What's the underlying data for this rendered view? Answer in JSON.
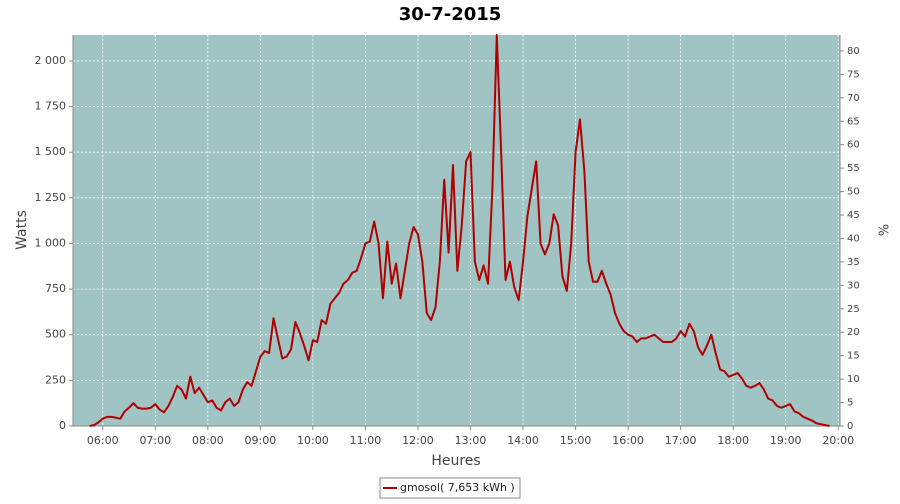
{
  "chart_data": {
    "type": "line",
    "title": "30-7-2015",
    "x_label": "Heures",
    "y_label": "Watts",
    "y2_label": "%",
    "x": [
      345,
      350,
      355,
      360,
      365,
      370,
      375,
      380,
      385,
      390,
      395,
      400,
      405,
      410,
      415,
      420,
      425,
      430,
      435,
      440,
      445,
      450,
      455,
      460,
      465,
      470,
      475,
      480,
      485,
      490,
      495,
      500,
      505,
      510,
      515,
      520,
      525,
      530,
      535,
      540,
      545,
      550,
      555,
      560,
      565,
      570,
      575,
      580,
      585,
      590,
      595,
      600,
      605,
      610,
      615,
      620,
      625,
      630,
      635,
      640,
      645,
      650,
      655,
      660,
      665,
      670,
      675,
      680,
      685,
      690,
      695,
      700,
      705,
      710,
      715,
      720,
      725,
      730,
      735,
      740,
      745,
      750,
      755,
      760,
      765,
      770,
      775,
      780,
      785,
      790,
      795,
      800,
      805,
      810,
      815,
      820,
      825,
      830,
      835,
      840,
      845,
      850,
      855,
      860,
      865,
      870,
      875,
      880,
      885,
      890,
      895,
      900,
      905,
      910,
      915,
      920,
      925,
      930,
      935,
      940,
      945,
      950,
      955,
      960,
      965,
      970,
      975,
      980,
      985,
      990,
      995,
      1000,
      1005,
      1010,
      1015,
      1020,
      1025,
      1030,
      1035,
      1040,
      1045,
      1050,
      1055,
      1060,
      1065,
      1070,
      1075,
      1080,
      1085,
      1090,
      1095,
      1100,
      1105,
      1110,
      1115,
      1120,
      1125,
      1130,
      1135,
      1140,
      1145,
      1150,
      1155,
      1160,
      1165,
      1170,
      1175,
      1180,
      1185,
      1190
    ],
    "series": [
      {
        "name": "gmosol( 7,653 kWh )",
        "color": "#b00000",
        "values": [
          0,
          5,
          20,
          40,
          50,
          50,
          45,
          40,
          80,
          100,
          125,
          100,
          95,
          95,
          100,
          120,
          90,
          75,
          110,
          160,
          220,
          200,
          150,
          270,
          180,
          210,
          170,
          130,
          140,
          100,
          85,
          130,
          150,
          110,
          130,
          200,
          240,
          220,
          300,
          380,
          410,
          400,
          590,
          480,
          370,
          380,
          420,
          570,
          510,
          440,
          360,
          470,
          460,
          580,
          560,
          670,
          700,
          730,
          780,
          800,
          840,
          850,
          920,
          1000,
          1010,
          1120,
          1000,
          700,
          1010,
          780,
          890,
          700,
          850,
          1000,
          1090,
          1050,
          900,
          620,
          580,
          650,
          900,
          1350,
          950,
          1430,
          850,
          1100,
          1450,
          1500,
          900,
          800,
          880,
          780,
          1300,
          2142,
          1500,
          800,
          900,
          760,
          690,
          900,
          1150,
          1300,
          1450,
          1000,
          940,
          1000,
          1160,
          1100,
          820,
          740,
          1000,
          1500,
          1680,
          1400,
          900,
          790,
          790,
          850,
          780,
          720,
          620,
          560,
          520,
          500,
          490,
          460,
          480,
          480,
          490,
          500,
          480,
          460,
          460,
          460,
          480,
          520,
          490,
          560,
          520,
          430,
          390,
          440,
          500,
          400,
          310,
          300,
          270,
          280,
          290,
          260,
          220,
          210,
          220,
          235,
          200,
          150,
          140,
          110,
          100,
          110,
          120,
          80,
          70,
          50,
          40,
          30,
          15,
          10,
          5,
          0
        ]
      }
    ],
    "xlim": [
      326,
      1202
    ],
    "xticks": [
      {
        "value": 360,
        "label": "06:00"
      },
      {
        "value": 420,
        "label": "07:00"
      },
      {
        "value": 480,
        "label": "08:00"
      },
      {
        "value": 540,
        "label": "09:00"
      },
      {
        "value": 600,
        "label": "10:00"
      },
      {
        "value": 660,
        "label": "11:00"
      },
      {
        "value": 720,
        "label": "12:00"
      },
      {
        "value": 780,
        "label": "13:00"
      },
      {
        "value": 840,
        "label": "14:00"
      },
      {
        "value": 900,
        "label": "15:00"
      },
      {
        "value": 960,
        "label": "16:00"
      },
      {
        "value": 1020,
        "label": "17:00"
      },
      {
        "value": 1080,
        "label": "18:00"
      },
      {
        "value": 1140,
        "label": "19:00"
      },
      {
        "value": 1200,
        "label": "20:00"
      }
    ],
    "ylim": [
      0,
      2142
    ],
    "yticks": [
      0,
      250,
      500,
      750,
      {
        "value": 1000,
        "label": "1 000"
      },
      {
        "value": 1250,
        "label": "1 250"
      },
      {
        "value": 1500,
        "label": "1 500"
      },
      {
        "value": 1750,
        "label": "1 750"
      },
      {
        "value": 2000,
        "label": "2 000"
      }
    ],
    "y2lim": [
      0,
      83.4
    ],
    "y2ticks": [
      0,
      5,
      10,
      15,
      20,
      25,
      30,
      35,
      40,
      45,
      50,
      55,
      60,
      65,
      70,
      75,
      80
    ],
    "grid": true,
    "background": "#a0c4c4",
    "legend": "bottom"
  }
}
